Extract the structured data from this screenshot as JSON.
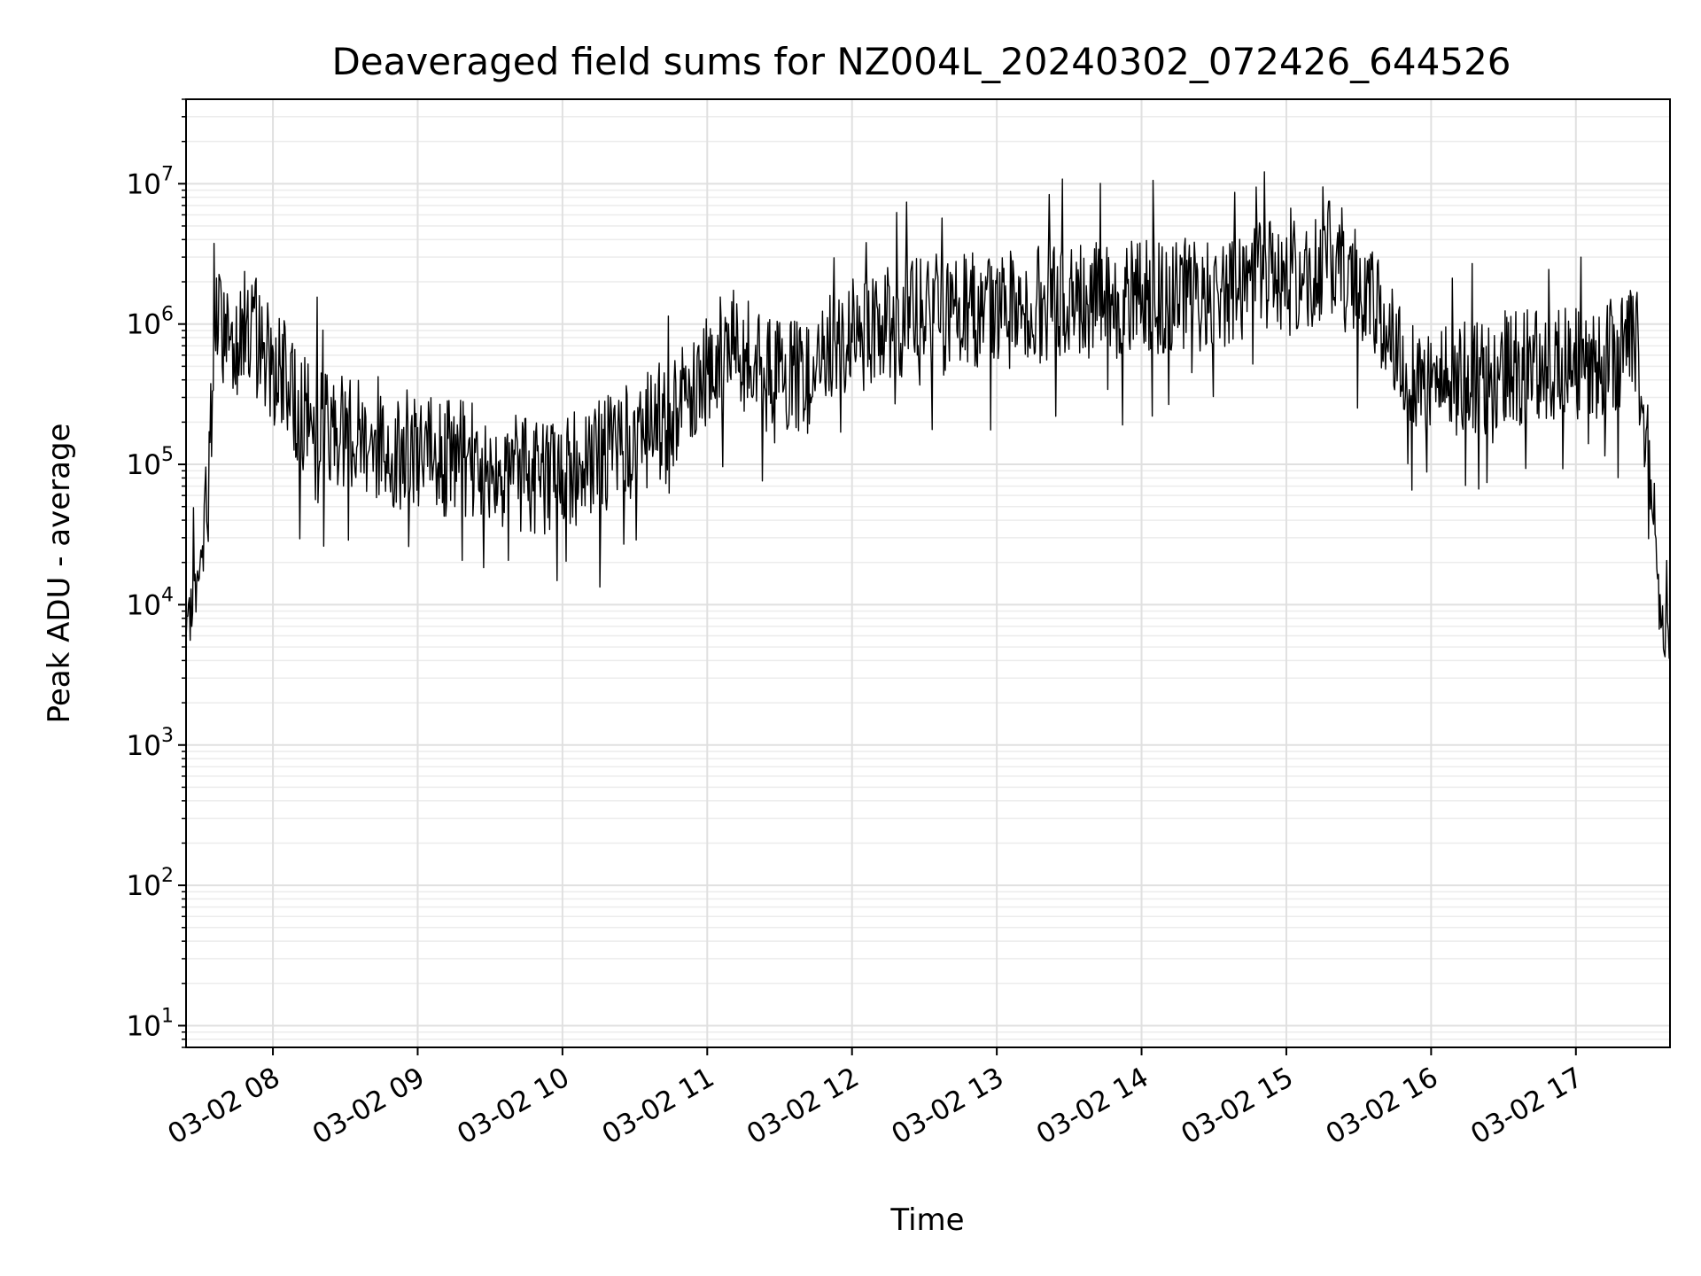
{
  "chart_data": {
    "type": "line",
    "title": "Deaveraged field sums for NZ004L_20240302_072426_644526",
    "xlabel": "Time",
    "ylabel": "Peak ADU - average",
    "yscale": "log",
    "ylim": [
      7,
      40000000
    ],
    "xlim": [
      "03-02 07:24",
      "03-02 17:39"
    ],
    "grid": true,
    "line_color": "#000000",
    "x_ticks": [
      "03-02 08",
      "03-02 09",
      "03-02 10",
      "03-02 11",
      "03-02 12",
      "03-02 13",
      "03-02 14",
      "03-02 15",
      "03-02 16",
      "03-02 17"
    ],
    "y_ticks": [
      {
        "base": "10",
        "exp": "1"
      },
      {
        "base": "10",
        "exp": "2"
      },
      {
        "base": "10",
        "exp": "3"
      },
      {
        "base": "10",
        "exp": "4"
      },
      {
        "base": "10",
        "exp": "5"
      },
      {
        "base": "10",
        "exp": "6"
      },
      {
        "base": "10",
        "exp": "7"
      }
    ],
    "series": [
      {
        "x": [
          "03-02 07:24",
          "03-02 07:27",
          "03-02 07:30",
          "03-02 07:33",
          "03-02 07:36",
          "03-02 07:40",
          "03-02 07:45",
          "03-02 07:50",
          "03-02 07:55",
          "03-02 08:00",
          "03-02 08:05",
          "03-02 08:10",
          "03-02 08:20",
          "03-02 08:30",
          "03-02 08:40",
          "03-02 08:50",
          "03-02 09:00",
          "03-02 09:10",
          "03-02 09:20",
          "03-02 09:30",
          "03-02 09:40",
          "03-02 09:50",
          "03-02 10:00",
          "03-02 10:10",
          "03-02 10:20",
          "03-02 10:30",
          "03-02 10:40",
          "03-02 10:50",
          "03-02 11:00",
          "03-02 11:10",
          "03-02 11:20",
          "03-02 11:30",
          "03-02 11:40",
          "03-02 11:50",
          "03-02 12:00",
          "03-02 12:15",
          "03-02 12:30",
          "03-02 12:45",
          "03-02 13:00",
          "03-02 13:15",
          "03-02 13:30",
          "03-02 13:45",
          "03-02 14:00",
          "03-02 14:15",
          "03-02 14:30",
          "03-02 14:40",
          "03-02 14:50",
          "03-02 15:00",
          "03-02 15:10",
          "03-02 15:20",
          "03-02 15:30",
          "03-02 15:40",
          "03-02 15:50",
          "03-02 16:00",
          "03-02 16:15",
          "03-02 16:30",
          "03-02 16:45",
          "03-02 17:00",
          "03-02 17:10",
          "03-02 17:20",
          "03-02 17:25",
          "03-02 17:30",
          "03-02 17:35",
          "03-02 17:39"
        ],
        "y": [
          5000,
          12000,
          15000,
          60000,
          1000000,
          900000,
          800000,
          1000000,
          800000,
          500000,
          400000,
          250000,
          200000,
          180000,
          150000,
          120000,
          120000,
          110000,
          110000,
          100000,
          90000,
          80000,
          90000,
          100000,
          120000,
          150000,
          200000,
          300000,
          500000,
          700000,
          500000,
          400000,
          400000,
          600000,
          800000,
          1000000,
          1200000,
          1200000,
          1300000,
          1400000,
          1500000,
          1500000,
          1500000,
          1600000,
          1700000,
          1800000,
          2500000,
          2000000,
          2500000,
          3000000,
          2000000,
          1000000,
          500000,
          400000,
          400000,
          500000,
          500000,
          500000,
          500000,
          700000,
          800000,
          100000,
          8000,
          5000
        ]
      }
    ]
  }
}
